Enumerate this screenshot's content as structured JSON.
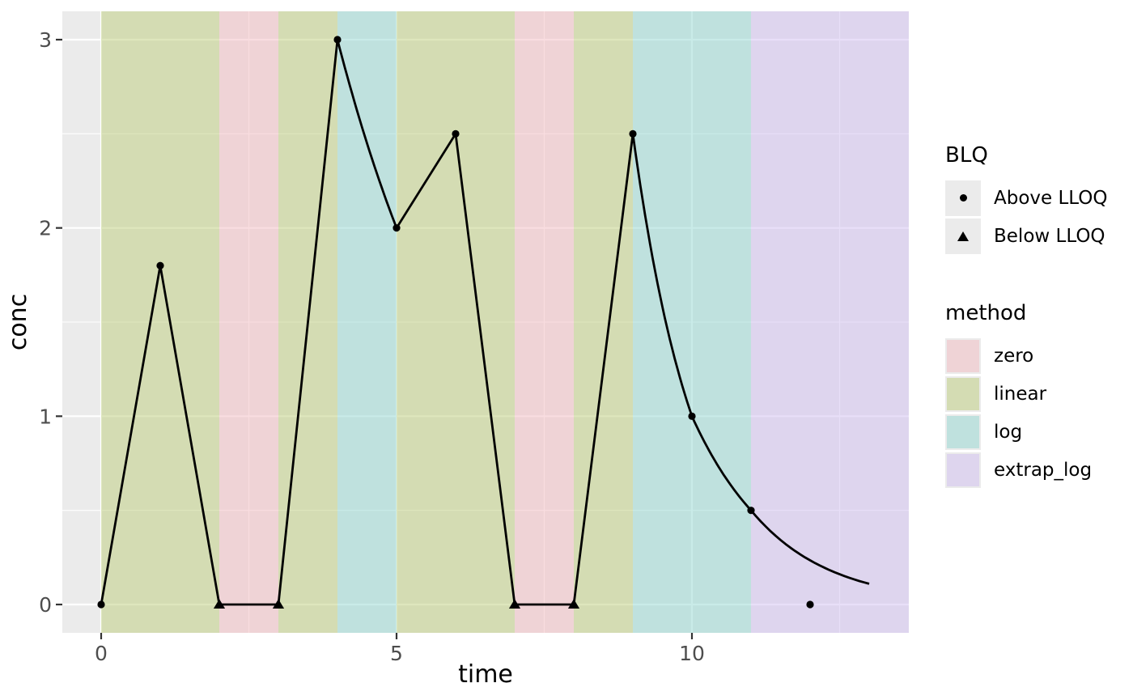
{
  "legend_blq": {
    "title": "BLQ",
    "items": [
      {
        "label": "Above LLOQ",
        "shape": "circle-marker"
      },
      {
        "label": "Below LLOQ",
        "shape": "triangle-marker"
      }
    ]
  },
  "legend_method": {
    "title": "method",
    "items": [
      {
        "label": "zero"
      },
      {
        "label": "linear"
      },
      {
        "label": "log"
      },
      {
        "label": "extrap_log"
      }
    ]
  },
  "chart_data": {
    "type": "line",
    "title": "",
    "xlabel": "time",
    "ylabel": "conc",
    "xlim": [
      -0.65,
      13.67
    ],
    "ylim": [
      -0.15,
      3.15
    ],
    "x_ticks": [
      0,
      5,
      10
    ],
    "x_minor_gridlines": [
      2.5,
      7.5,
      12.5
    ],
    "y_ticks": [
      0,
      1,
      2,
      3
    ],
    "y_minor_gridlines": [
      0.5,
      1.5,
      2.5
    ],
    "grid": true,
    "legend_position": "right",
    "points": [
      {
        "time": 0,
        "conc": 0,
        "blq": "Above LLOQ"
      },
      {
        "time": 1,
        "conc": 1.8,
        "blq": "Above LLOQ"
      },
      {
        "time": 2,
        "conc": 0,
        "blq": "Below LLOQ"
      },
      {
        "time": 3,
        "conc": 0,
        "blq": "Below LLOQ"
      },
      {
        "time": 4,
        "conc": 3,
        "blq": "Above LLOQ"
      },
      {
        "time": 5,
        "conc": 2,
        "blq": "Above LLOQ"
      },
      {
        "time": 6,
        "conc": 2.5,
        "blq": "Above LLOQ"
      },
      {
        "time": 7,
        "conc": 0,
        "blq": "Below LLOQ"
      },
      {
        "time": 8,
        "conc": 0,
        "blq": "Below LLOQ"
      },
      {
        "time": 9,
        "conc": 2.5,
        "blq": "Above LLOQ"
      },
      {
        "time": 10,
        "conc": 1,
        "blq": "Above LLOQ"
      },
      {
        "time": 11,
        "conc": 0.5,
        "blq": "Above LLOQ"
      },
      {
        "time": 12,
        "conc": 0,
        "blq": "Above LLOQ",
        "on_line": false
      }
    ],
    "line_segments": [
      {
        "from": [
          0,
          0
        ],
        "to": [
          1,
          1.8
        ],
        "type": "linear"
      },
      {
        "from": [
          1,
          1.8
        ],
        "to": [
          2,
          0
        ],
        "type": "linear"
      },
      {
        "from": [
          2,
          0
        ],
        "to": [
          3,
          0
        ],
        "type": "linear"
      },
      {
        "from": [
          3,
          0
        ],
        "to": [
          4,
          3
        ],
        "type": "linear"
      },
      {
        "from": [
          4,
          3
        ],
        "to": [
          5,
          2
        ],
        "type": "log"
      },
      {
        "from": [
          5,
          2
        ],
        "to": [
          6,
          2.5
        ],
        "type": "linear"
      },
      {
        "from": [
          6,
          2.5
        ],
        "to": [
          7,
          0
        ],
        "type": "linear"
      },
      {
        "from": [
          7,
          0
        ],
        "to": [
          8,
          0
        ],
        "type": "linear"
      },
      {
        "from": [
          8,
          0
        ],
        "to": [
          9,
          2.5
        ],
        "type": "linear"
      },
      {
        "from": [
          9,
          2.5
        ],
        "to": [
          10,
          1
        ],
        "type": "log"
      },
      {
        "from": [
          10,
          1
        ],
        "to": [
          11,
          0.5
        ],
        "type": "log"
      },
      {
        "from": [
          11,
          0.5
        ],
        "to": [
          13,
          0.11
        ],
        "type": "log"
      }
    ],
    "method_bands": [
      {
        "t0": 0,
        "t1": 2,
        "method": "linear"
      },
      {
        "t0": 2,
        "t1": 3,
        "method": "zero"
      },
      {
        "t0": 3,
        "t1": 4,
        "method": "linear"
      },
      {
        "t0": 4,
        "t1": 5,
        "method": "log"
      },
      {
        "t0": 5,
        "t1": 7,
        "method": "linear"
      },
      {
        "t0": 7,
        "t1": 8,
        "method": "zero"
      },
      {
        "t0": 8,
        "t1": 9,
        "method": "linear"
      },
      {
        "t0": 9,
        "t1": 11,
        "method": "log"
      },
      {
        "t0": 11,
        "t1": 13.67,
        "method": "extrap_log"
      }
    ],
    "colors": {
      "zero": "#efd3d6",
      "linear": "#d4dcb3",
      "log": "#bfe1de",
      "extrap_log": "#ded5ee",
      "panel_bg": "#ebebeb",
      "gridline": "#ffffff",
      "line": "#000000",
      "tick": "#333333",
      "tick_label": "#4d4d4d",
      "axis_title": "#000000"
    }
  }
}
